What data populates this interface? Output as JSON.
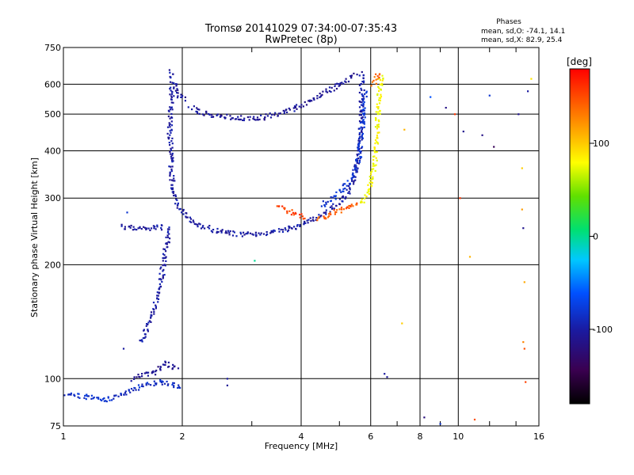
{
  "chart_data": {
    "type": "scatter",
    "title": "Tromsø 20141029 07:34:00-07:35:43",
    "subtitle": "RwPretec (8p)",
    "annotation": {
      "heading": "Phases",
      "line1": "mean, sd,O: -74.1, 14.1",
      "line2": "mean, sd,X:  82.9, 25.4"
    },
    "xlabel": "Frequency [MHz]",
    "ylabel": "Stationary phase Virtual Height [km]",
    "x_scale": "log",
    "y_scale": "log",
    "xlim": [
      1,
      16
    ],
    "ylim": [
      75,
      750
    ],
    "x_ticks": [
      {
        "value": 1,
        "label": "1"
      },
      {
        "value": 2,
        "label": "2"
      },
      {
        "value": 4,
        "label": "4"
      },
      {
        "value": 6,
        "label": "6"
      },
      {
        "value": 8,
        "label": "8"
      },
      {
        "value": 10,
        "label": "10"
      },
      {
        "value": 16,
        "label": "16"
      }
    ],
    "y_ticks": [
      {
        "value": 75,
        "label": "75"
      },
      {
        "value": 100,
        "label": "100"
      },
      {
        "value": 200,
        "label": "200"
      },
      {
        "value": 300,
        "label": "300"
      },
      {
        "value": 400,
        "label": "400"
      },
      {
        "value": 500,
        "label": "500"
      },
      {
        "value": 600,
        "label": "600"
      },
      {
        "value": 750,
        "label": "750"
      }
    ],
    "grid": true,
    "colorbar": {
      "label": "[deg]",
      "range": [
        -180,
        180
      ],
      "ticks": [
        {
          "value": 100,
          "label": "100"
        },
        {
          "value": 0,
          "label": "0"
        },
        {
          "value": -100,
          "label": "-100"
        }
      ]
    },
    "traces": [
      {
        "points": [
          [
            1.88,
            650
          ],
          [
            1.88,
            560
          ],
          [
            1.87,
            500
          ],
          [
            1.86,
            450
          ],
          [
            1.87,
            400
          ],
          [
            1.88,
            350
          ],
          [
            1.9,
            310
          ],
          [
            1.95,
            290
          ],
          [
            2.0,
            275
          ],
          [
            2.1,
            262
          ],
          [
            2.2,
            255
          ],
          [
            2.4,
            247
          ],
          [
            2.6,
            243
          ],
          [
            2.8,
            241
          ],
          [
            3.0,
            241
          ],
          [
            3.3,
            243
          ],
          [
            3.6,
            247
          ],
          [
            4.0,
            255
          ],
          [
            4.4,
            266
          ],
          [
            4.8,
            282
          ],
          [
            5.2,
            305
          ],
          [
            5.5,
            350
          ],
          [
            5.65,
            420
          ],
          [
            5.7,
            520
          ],
          [
            5.7,
            600
          ],
          [
            5.68,
            650
          ]
        ],
        "phase": -100
      },
      {
        "points": [
          [
            2.1,
            520
          ],
          [
            2.3,
            500
          ],
          [
            2.6,
            492
          ],
          [
            2.9,
            488
          ],
          [
            3.2,
            490
          ],
          [
            3.6,
            505
          ],
          [
            4.0,
            525
          ],
          [
            4.4,
            555
          ],
          [
            4.8,
            585
          ],
          [
            5.2,
            615
          ],
          [
            5.5,
            640
          ]
        ],
        "phase": -105
      },
      {
        "points": [
          [
            1.92,
            600
          ],
          [
            1.97,
            560
          ],
          [
            2.05,
            545
          ]
        ],
        "phase": -105
      },
      {
        "points": [
          [
            1.85,
            250
          ],
          [
            1.83,
            230
          ],
          [
            1.8,
            210
          ],
          [
            1.78,
            190
          ],
          [
            1.76,
            175
          ],
          [
            1.72,
            160
          ],
          [
            1.67,
            145
          ],
          [
            1.6,
            130
          ],
          [
            1.55,
            125
          ]
        ],
        "phase": -100
      },
      {
        "points": [
          [
            1.4,
            253
          ],
          [
            1.5,
            250
          ],
          [
            1.6,
            249
          ],
          [
            1.7,
            250
          ],
          [
            1.8,
            252
          ]
        ],
        "phase": -100
      },
      {
        "points": [
          [
            4.5,
            285
          ],
          [
            4.8,
            300
          ],
          [
            5.1,
            315
          ],
          [
            5.4,
            340
          ],
          [
            5.6,
            380
          ],
          [
            5.7,
            450
          ],
          [
            5.75,
            520
          ],
          [
            5.8,
            580
          ]
        ],
        "phase": -80
      },
      {
        "points": [
          [
            3.5,
            285
          ],
          [
            3.7,
            277
          ],
          [
            3.9,
            270
          ],
          [
            4.1,
            267
          ]
        ],
        "phase": 155
      },
      {
        "points": [
          [
            4.4,
            265
          ],
          [
            4.7,
            270
          ],
          [
            5.0,
            278
          ],
          [
            5.3,
            285
          ],
          [
            5.6,
            290
          ]
        ],
        "phase": 145
      },
      {
        "points": [
          [
            5.6,
            290
          ],
          [
            5.8,
            300
          ],
          [
            5.95,
            320
          ],
          [
            6.05,
            345
          ],
          [
            6.15,
            380
          ],
          [
            6.2,
            420
          ],
          [
            6.25,
            480
          ],
          [
            6.3,
            540
          ],
          [
            6.35,
            600
          ],
          [
            6.4,
            640
          ]
        ],
        "phase": 80
      },
      {
        "points": [
          [
            6.1,
            600
          ],
          [
            6.2,
            630
          ],
          [
            6.3,
            645
          ]
        ],
        "phase": 135
      },
      {
        "points": [
          [
            1.0,
            92
          ],
          [
            1.1,
            90
          ],
          [
            1.3,
            88
          ],
          [
            1.45,
            92
          ],
          [
            1.6,
            96
          ],
          [
            1.75,
            98
          ],
          [
            1.85,
            97
          ],
          [
            2.0,
            95
          ]
        ],
        "phase": -85
      },
      {
        "points": [
          [
            1.5,
            100
          ],
          [
            1.6,
            103
          ],
          [
            1.7,
            104
          ],
          [
            1.8,
            110
          ],
          [
            1.95,
            106
          ]
        ],
        "phase": -110
      }
    ],
    "scattered": [
      {
        "x": 8.5,
        "y": 555,
        "phase": -60
      },
      {
        "x": 9.3,
        "y": 520,
        "phase": -115
      },
      {
        "x": 9.8,
        "y": 500,
        "phase": 160
      },
      {
        "x": 10.3,
        "y": 450,
        "phase": -110
      },
      {
        "x": 10.7,
        "y": 210,
        "phase": 110
      },
      {
        "x": 10.1,
        "y": 300,
        "phase": 160
      },
      {
        "x": 11.5,
        "y": 440,
        "phase": -115
      },
      {
        "x": 12.3,
        "y": 410,
        "phase": -140
      },
      {
        "x": 12.0,
        "y": 560,
        "phase": -80
      },
      {
        "x": 14.2,
        "y": 500,
        "phase": -110
      },
      {
        "x": 14.5,
        "y": 360,
        "phase": 100
      },
      {
        "x": 14.5,
        "y": 280,
        "phase": 120
      },
      {
        "x": 14.6,
        "y": 250,
        "phase": -110
      },
      {
        "x": 14.7,
        "y": 180,
        "phase": 115
      },
      {
        "x": 14.6,
        "y": 125,
        "phase": 130
      },
      {
        "x": 14.7,
        "y": 120,
        "phase": 150
      },
      {
        "x": 14.8,
        "y": 98,
        "phase": 155
      },
      {
        "x": 15.0,
        "y": 575,
        "phase": -100
      },
      {
        "x": 15.3,
        "y": 620,
        "phase": 90
      },
      {
        "x": 6.5,
        "y": 103,
        "phase": -100
      },
      {
        "x": 6.6,
        "y": 101,
        "phase": -105
      },
      {
        "x": 7.2,
        "y": 140,
        "phase": 100
      },
      {
        "x": 8.2,
        "y": 79,
        "phase": -120
      },
      {
        "x": 9.0,
        "y": 76,
        "phase": -80
      },
      {
        "x": 11.0,
        "y": 78,
        "phase": 150
      },
      {
        "x": 2.6,
        "y": 100,
        "phase": -100
      },
      {
        "x": 2.6,
        "y": 96,
        "phase": -105
      },
      {
        "x": 1.45,
        "y": 275,
        "phase": -80
      },
      {
        "x": 1.42,
        "y": 120,
        "phase": -100
      },
      {
        "x": 3.05,
        "y": 205,
        "phase": 0
      },
      {
        "x": 6.3,
        "y": 625,
        "phase": 155
      },
      {
        "x": 7.3,
        "y": 455,
        "phase": 110
      }
    ]
  }
}
